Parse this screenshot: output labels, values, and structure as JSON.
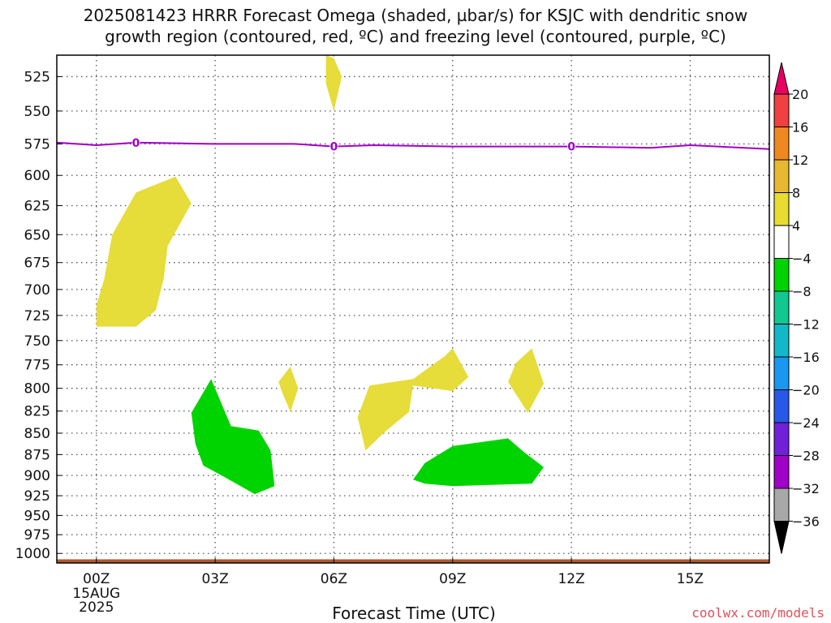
{
  "title_lines": [
    "2025081423 HRRR Forecast Omega (shaded, µbar/s) for KSJC with dendritic snow",
    "growth region (contoured, red, ºC) and freezing level (contoured, purple, ºC)"
  ],
  "credit": "coolwx.com/models",
  "chart_data": {
    "type": "time-height cross-section",
    "xlabel": "Forecast Time (UTC)",
    "ylabel": "",
    "x_unit": "hours from 00Z 15AUG 2025",
    "xlim": [
      -1,
      17
    ],
    "x_ticks": [
      {
        "x": 0,
        "label": "00Z",
        "sublabels": [
          "15AUG",
          "2025"
        ]
      },
      {
        "x": 3,
        "label": "03Z",
        "sublabels": []
      },
      {
        "x": 6,
        "label": "06Z",
        "sublabels": []
      },
      {
        "x": 9,
        "label": "09Z",
        "sublabels": []
      },
      {
        "x": 12,
        "label": "12Z",
        "sublabels": []
      },
      {
        "x": 15,
        "label": "15Z",
        "sublabels": []
      }
    ],
    "y_unit": "hPa",
    "y_scale": "log",
    "ylim": [
      1013,
      510
    ],
    "y_ticks": [
      525,
      550,
      575,
      600,
      625,
      650,
      675,
      700,
      725,
      750,
      775,
      800,
      825,
      850,
      875,
      900,
      925,
      950,
      975,
      1000
    ],
    "grid": true,
    "freezing_level": {
      "color": "#a000c8",
      "label": "0",
      "label_x": [
        1,
        6,
        12
      ],
      "points": [
        [
          -1,
          574
        ],
        [
          0,
          576
        ],
        [
          1,
          574
        ],
        [
          3,
          575
        ],
        [
          5,
          575
        ],
        [
          6,
          577
        ],
        [
          7,
          576
        ],
        [
          9,
          577
        ],
        [
          11,
          577
        ],
        [
          12,
          577
        ],
        [
          14,
          578
        ],
        [
          15,
          576
        ],
        [
          17,
          579
        ]
      ]
    },
    "omega_regions": [
      {
        "fill": "yellow",
        "points": [
          [
            5.8,
            510
          ],
          [
            6.0,
            512
          ],
          [
            6.2,
            525
          ],
          [
            6.0,
            550
          ],
          [
            5.8,
            530
          ]
        ]
      },
      {
        "fill": "yellow",
        "points": [
          [
            0.0,
            736
          ],
          [
            1.0,
            736
          ],
          [
            1.5,
            720
          ],
          [
            1.7,
            690
          ],
          [
            1.8,
            660
          ],
          [
            2.4,
            623
          ],
          [
            2.0,
            601
          ],
          [
            1.0,
            614
          ],
          [
            0.4,
            650
          ],
          [
            0.2,
            690
          ],
          [
            0.0,
            715
          ]
        ]
      },
      {
        "fill": "yellow",
        "points": [
          [
            4.6,
            793
          ],
          [
            4.9,
            777
          ],
          [
            5.1,
            800
          ],
          [
            4.9,
            826
          ],
          [
            4.7,
            805
          ]
        ]
      },
      {
        "fill": "yellow",
        "points": [
          [
            6.6,
            832
          ],
          [
            6.8,
            870
          ],
          [
            7.3,
            848
          ],
          [
            7.9,
            826
          ],
          [
            8.0,
            797
          ],
          [
            9.0,
            803
          ],
          [
            9.4,
            788
          ],
          [
            9.0,
            758
          ],
          [
            8.8,
            766
          ],
          [
            8.0,
            790
          ],
          [
            6.9,
            797
          ]
        ]
      },
      {
        "fill": "yellow",
        "points": [
          [
            10.4,
            793
          ],
          [
            10.9,
            827
          ],
          [
            11.3,
            795
          ],
          [
            11.0,
            758
          ],
          [
            10.6,
            773
          ]
        ]
      },
      {
        "fill": "green",
        "points": [
          [
            2.4,
            827
          ],
          [
            2.9,
            790
          ],
          [
            3.4,
            842
          ],
          [
            4.1,
            847
          ],
          [
            4.4,
            870
          ],
          [
            4.5,
            913
          ],
          [
            4.0,
            923
          ],
          [
            3.2,
            901
          ],
          [
            2.7,
            888
          ],
          [
            2.5,
            862
          ]
        ]
      },
      {
        "fill": "green",
        "points": [
          [
            8.3,
            910
          ],
          [
            8.0,
            905
          ],
          [
            8.3,
            885
          ],
          [
            9.0,
            865
          ],
          [
            10.4,
            856
          ],
          [
            10.8,
            872
          ],
          [
            11.3,
            890
          ],
          [
            11.0,
            910
          ],
          [
            9.0,
            913
          ]
        ]
      }
    ],
    "surface_band": {
      "color": "#b05a30",
      "pressure": 1008
    },
    "colorbar": {
      "unit": "µbar/s",
      "levels": [
        "20",
        "16",
        "12",
        "8",
        "4",
        "−4",
        "−8",
        "−12",
        "−16",
        "−20",
        "−24",
        "−28",
        "−32",
        "−36"
      ],
      "colors": [
        "#e80060",
        "#f04040",
        "#f08820",
        "#e8b830",
        "#e8dc30",
        "#ffffff",
        "#00d400",
        "#10c890",
        "#10b8c8",
        "#1898f0",
        "#2858e8",
        "#7020d8",
        "#a000c8",
        "#a8a8a8",
        "#000000"
      ]
    }
  }
}
